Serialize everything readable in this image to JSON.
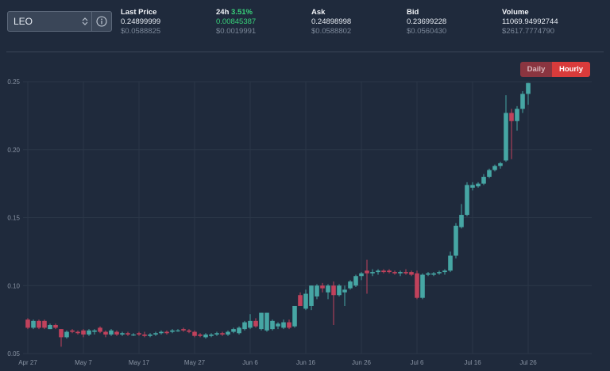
{
  "market": {
    "selected": "LEO"
  },
  "stats": [
    {
      "label": "Last Price",
      "label_accent": "",
      "line1": "0.24899999",
      "line2": "$0.0588825",
      "line1_green": false
    },
    {
      "label": "24h",
      "label_accent": "3.51%",
      "line1": "0.00845387",
      "line2": "$0.0019991",
      "line1_green": true
    },
    {
      "label": "Ask",
      "label_accent": "",
      "line1": "0.24898998",
      "line2": "$0.0588802",
      "line1_green": false
    },
    {
      "label": "Bid",
      "label_accent": "",
      "line1": "0.23699228",
      "line2": "$0.0560430",
      "line1_green": false
    },
    {
      "label": "Volume",
      "label_accent": "",
      "line1": "11069.94992744",
      "line2": "$2617.7774790",
      "line1_green": false
    }
  ],
  "interval_toggle": {
    "options": [
      "Daily",
      "Hourly"
    ],
    "active": "Hourly"
  },
  "colors": {
    "up": "#46a6a4",
    "down": "#c0425c",
    "grid": "#2b3748",
    "axis_text": "#8893a3"
  },
  "chart_data": {
    "type": "candlestick",
    "title": "",
    "xlabel": "",
    "ylabel": "",
    "ylim": [
      0.05,
      0.25
    ],
    "y_ticks": [
      "0.25",
      "0.20",
      "0.15",
      "0.10",
      "0.05"
    ],
    "x_ticks": [
      "Apr 27",
      "May 7",
      "May 17",
      "May 27",
      "Jun 6",
      "Jun 16",
      "Jun 26",
      "Jul 6",
      "Jul 16",
      "Jul 26"
    ],
    "grid": true,
    "candles": [
      {
        "date": "Apr 27",
        "o": 0.075,
        "h": 0.076,
        "l": 0.068,
        "c": 0.069
      },
      {
        "date": "Apr 28",
        "o": 0.069,
        "h": 0.075,
        "l": 0.068,
        "c": 0.074
      },
      {
        "date": "Apr 29",
        "o": 0.074,
        "h": 0.075,
        "l": 0.068,
        "c": 0.069
      },
      {
        "date": "Apr 30",
        "o": 0.074,
        "h": 0.075,
        "l": 0.068,
        "c": 0.069
      },
      {
        "date": "May 1",
        "o": 0.068,
        "h": 0.072,
        "l": 0.068,
        "c": 0.071
      },
      {
        "date": "May 2",
        "o": 0.071,
        "h": 0.072,
        "l": 0.068,
        "c": 0.069
      },
      {
        "date": "May 3",
        "o": 0.068,
        "h": 0.068,
        "l": 0.055,
        "c": 0.062
      },
      {
        "date": "May 4",
        "o": 0.062,
        "h": 0.067,
        "l": 0.061,
        "c": 0.066
      },
      {
        "date": "May 5",
        "o": 0.067,
        "h": 0.068,
        "l": 0.065,
        "c": 0.066
      },
      {
        "date": "May 6",
        "o": 0.066,
        "h": 0.067,
        "l": 0.064,
        "c": 0.065
      },
      {
        "date": "May 7",
        "o": 0.067,
        "h": 0.068,
        "l": 0.062,
        "c": 0.064
      },
      {
        "date": "May 8",
        "o": 0.064,
        "h": 0.068,
        "l": 0.063,
        "c": 0.067
      },
      {
        "date": "May 9",
        "o": 0.066,
        "h": 0.068,
        "l": 0.064,
        "c": 0.067
      },
      {
        "date": "May 10",
        "o": 0.069,
        "h": 0.07,
        "l": 0.065,
        "c": 0.066
      },
      {
        "date": "May 11",
        "o": 0.066,
        "h": 0.067,
        "l": 0.062,
        "c": 0.064
      },
      {
        "date": "May 12",
        "o": 0.064,
        "h": 0.068,
        "l": 0.063,
        "c": 0.067
      },
      {
        "date": "May 13",
        "o": 0.066,
        "h": 0.067,
        "l": 0.063,
        "c": 0.064
      },
      {
        "date": "May 14",
        "o": 0.064,
        "h": 0.066,
        "l": 0.063,
        "c": 0.065
      },
      {
        "date": "May 15",
        "o": 0.065,
        "h": 0.066,
        "l": 0.063,
        "c": 0.064
      },
      {
        "date": "May 16",
        "o": 0.064,
        "h": 0.065,
        "l": 0.063,
        "c": 0.064
      },
      {
        "date": "May 17",
        "o": 0.065,
        "h": 0.066,
        "l": 0.063,
        "c": 0.064
      },
      {
        "date": "May 18",
        "o": 0.064,
        "h": 0.066,
        "l": 0.062,
        "c": 0.063
      },
      {
        "date": "May 19",
        "o": 0.063,
        "h": 0.065,
        "l": 0.062,
        "c": 0.064
      },
      {
        "date": "May 20",
        "o": 0.064,
        "h": 0.066,
        "l": 0.063,
        "c": 0.065
      },
      {
        "date": "May 21",
        "o": 0.065,
        "h": 0.067,
        "l": 0.064,
        "c": 0.066
      },
      {
        "date": "May 22",
        "o": 0.066,
        "h": 0.067,
        "l": 0.064,
        "c": 0.065
      },
      {
        "date": "May 23",
        "o": 0.066,
        "h": 0.068,
        "l": 0.065,
        "c": 0.067
      },
      {
        "date": "May 24",
        "o": 0.067,
        "h": 0.068,
        "l": 0.066,
        "c": 0.067
      },
      {
        "date": "May 25",
        "o": 0.068,
        "h": 0.069,
        "l": 0.066,
        "c": 0.067
      },
      {
        "date": "May 26",
        "o": 0.067,
        "h": 0.068,
        "l": 0.065,
        "c": 0.066
      },
      {
        "date": "May 27",
        "o": 0.066,
        "h": 0.067,
        "l": 0.062,
        "c": 0.063
      },
      {
        "date": "May 28",
        "o": 0.064,
        "h": 0.065,
        "l": 0.062,
        "c": 0.063
      },
      {
        "date": "May 29",
        "o": 0.062,
        "h": 0.065,
        "l": 0.061,
        "c": 0.064
      },
      {
        "date": "May 30",
        "o": 0.063,
        "h": 0.065,
        "l": 0.062,
        "c": 0.064
      },
      {
        "date": "May 31",
        "o": 0.064,
        "h": 0.066,
        "l": 0.063,
        "c": 0.065
      },
      {
        "date": "Jun 1",
        "o": 0.065,
        "h": 0.066,
        "l": 0.063,
        "c": 0.064
      },
      {
        "date": "Jun 2",
        "o": 0.064,
        "h": 0.067,
        "l": 0.063,
        "c": 0.066
      },
      {
        "date": "Jun 3",
        "o": 0.066,
        "h": 0.069,
        "l": 0.065,
        "c": 0.068
      },
      {
        "date": "Jun 4",
        "o": 0.065,
        "h": 0.07,
        "l": 0.064,
        "c": 0.069
      },
      {
        "date": "Jun 5",
        "o": 0.068,
        "h": 0.074,
        "l": 0.067,
        "c": 0.073
      },
      {
        "date": "Jun 6",
        "o": 0.069,
        "h": 0.079,
        "l": 0.068,
        "c": 0.074
      },
      {
        "date": "Jun 7",
        "o": 0.074,
        "h": 0.076,
        "l": 0.069,
        "c": 0.07
      },
      {
        "date": "Jun 8",
        "o": 0.068,
        "h": 0.08,
        "l": 0.067,
        "c": 0.08
      },
      {
        "date": "Jun 9",
        "o": 0.067,
        "h": 0.08,
        "l": 0.066,
        "c": 0.08
      },
      {
        "date": "Jun 10",
        "o": 0.068,
        "h": 0.075,
        "l": 0.067,
        "c": 0.074
      },
      {
        "date": "Jun 11",
        "o": 0.07,
        "h": 0.073,
        "l": 0.068,
        "c": 0.072
      },
      {
        "date": "Jun 12",
        "o": 0.069,
        "h": 0.075,
        "l": 0.068,
        "c": 0.073
      },
      {
        "date": "Jun 13",
        "o": 0.073,
        "h": 0.075,
        "l": 0.068,
        "c": 0.069
      },
      {
        "date": "Jun 14",
        "o": 0.07,
        "h": 0.085,
        "l": 0.069,
        "c": 0.085
      },
      {
        "date": "Jun 15",
        "o": 0.093,
        "h": 0.095,
        "l": 0.085,
        "c": 0.085
      },
      {
        "date": "Jun 16",
        "o": 0.083,
        "h": 0.097,
        "l": 0.082,
        "c": 0.094
      },
      {
        "date": "Jun 17",
        "o": 0.085,
        "h": 0.1,
        "l": 0.082,
        "c": 0.1
      },
      {
        "date": "Jun 18",
        "o": 0.092,
        "h": 0.101,
        "l": 0.09,
        "c": 0.1
      },
      {
        "date": "Jun 19",
        "o": 0.1,
        "h": 0.102,
        "l": 0.095,
        "c": 0.098
      },
      {
        "date": "Jun 20",
        "o": 0.095,
        "h": 0.101,
        "l": 0.09,
        "c": 0.1
      },
      {
        "date": "Jun 21",
        "o": 0.1,
        "h": 0.103,
        "l": 0.071,
        "c": 0.093
      },
      {
        "date": "Jun 22",
        "o": 0.093,
        "h": 0.101,
        "l": 0.092,
        "c": 0.1
      },
      {
        "date": "Jun 23",
        "o": 0.095,
        "h": 0.1,
        "l": 0.085,
        "c": 0.097
      },
      {
        "date": "Jun 24",
        "o": 0.098,
        "h": 0.104,
        "l": 0.097,
        "c": 0.103
      },
      {
        "date": "Jun 25",
        "o": 0.1,
        "h": 0.108,
        "l": 0.099,
        "c": 0.107
      },
      {
        "date": "Jun 26",
        "o": 0.107,
        "h": 0.11,
        "l": 0.104,
        "c": 0.109
      },
      {
        "date": "Jun 27",
        "o": 0.111,
        "h": 0.119,
        "l": 0.094,
        "c": 0.109
      },
      {
        "date": "Jun 28",
        "o": 0.109,
        "h": 0.112,
        "l": 0.107,
        "c": 0.11
      },
      {
        "date": "Jun 29",
        "o": 0.11,
        "h": 0.112,
        "l": 0.108,
        "c": 0.111
      },
      {
        "date": "Jun 30",
        "o": 0.111,
        "h": 0.112,
        "l": 0.109,
        "c": 0.11
      },
      {
        "date": "Jul 1",
        "o": 0.111,
        "h": 0.112,
        "l": 0.109,
        "c": 0.11
      },
      {
        "date": "Jul 2",
        "o": 0.11,
        "h": 0.111,
        "l": 0.108,
        "c": 0.109
      },
      {
        "date": "Jul 3",
        "o": 0.109,
        "h": 0.111,
        "l": 0.107,
        "c": 0.11
      },
      {
        "date": "Jul 4",
        "o": 0.11,
        "h": 0.112,
        "l": 0.108,
        "c": 0.109
      },
      {
        "date": "Jul 5",
        "o": 0.11,
        "h": 0.111,
        "l": 0.107,
        "c": 0.108
      },
      {
        "date": "Jul 6",
        "o": 0.109,
        "h": 0.111,
        "l": 0.09,
        "c": 0.091
      },
      {
        "date": "Jul 7",
        "o": 0.091,
        "h": 0.109,
        "l": 0.09,
        "c": 0.108
      },
      {
        "date": "Jul 8",
        "o": 0.108,
        "h": 0.11,
        "l": 0.107,
        "c": 0.109
      },
      {
        "date": "Jul 9",
        "o": 0.108,
        "h": 0.11,
        "l": 0.107,
        "c": 0.109
      },
      {
        "date": "Jul 10",
        "o": 0.109,
        "h": 0.111,
        "l": 0.108,
        "c": 0.11
      },
      {
        "date": "Jul 11",
        "o": 0.11,
        "h": 0.112,
        "l": 0.108,
        "c": 0.111
      },
      {
        "date": "Jul 12",
        "o": 0.111,
        "h": 0.125,
        "l": 0.11,
        "c": 0.122
      },
      {
        "date": "Jul 13",
        "o": 0.122,
        "h": 0.146,
        "l": 0.12,
        "c": 0.144
      },
      {
        "date": "Jul 14",
        "o": 0.143,
        "h": 0.16,
        "l": 0.142,
        "c": 0.152
      },
      {
        "date": "Jul 15",
        "o": 0.152,
        "h": 0.176,
        "l": 0.151,
        "c": 0.174
      },
      {
        "date": "Jul 16",
        "o": 0.172,
        "h": 0.176,
        "l": 0.17,
        "c": 0.174
      },
      {
        "date": "Jul 17",
        "o": 0.173,
        "h": 0.176,
        "l": 0.172,
        "c": 0.175
      },
      {
        "date": "Jul 18",
        "o": 0.175,
        "h": 0.182,
        "l": 0.174,
        "c": 0.18
      },
      {
        "date": "Jul 19",
        "o": 0.18,
        "h": 0.186,
        "l": 0.179,
        "c": 0.185
      },
      {
        "date": "Jul 20",
        "o": 0.185,
        "h": 0.189,
        "l": 0.184,
        "c": 0.188
      },
      {
        "date": "Jul 21",
        "o": 0.188,
        "h": 0.191,
        "l": 0.186,
        "c": 0.19
      },
      {
        "date": "Jul 22",
        "o": 0.192,
        "h": 0.24,
        "l": 0.191,
        "c": 0.227
      },
      {
        "date": "Jul 23",
        "o": 0.227,
        "h": 0.23,
        "l": 0.193,
        "c": 0.221
      },
      {
        "date": "Jul 24",
        "o": 0.221,
        "h": 0.232,
        "l": 0.214,
        "c": 0.23
      },
      {
        "date": "Jul 25",
        "o": 0.23,
        "h": 0.243,
        "l": 0.227,
        "c": 0.241
      },
      {
        "date": "Jul 26",
        "o": 0.241,
        "h": 0.249,
        "l": 0.233,
        "c": 0.249
      }
    ]
  }
}
